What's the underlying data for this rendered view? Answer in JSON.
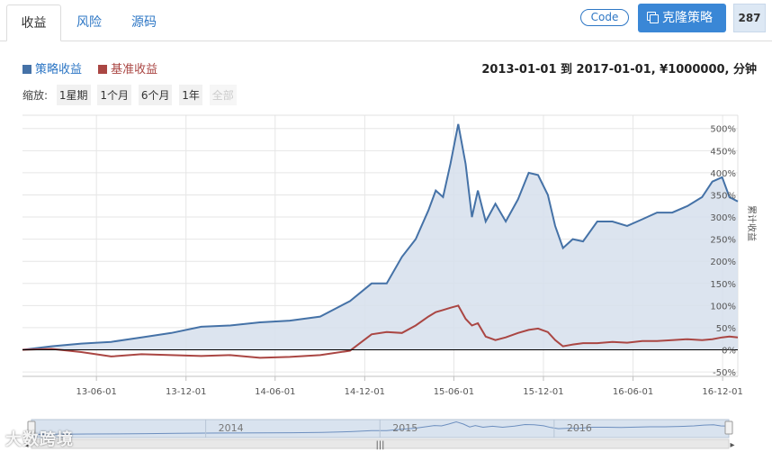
{
  "tabs": [
    {
      "label": "收益",
      "active": true
    },
    {
      "label": "风险",
      "active": false
    },
    {
      "label": "源码",
      "active": false
    }
  ],
  "header_buttons": {
    "code_label": "Code",
    "clone_label": "克隆策略",
    "clone_count": "287"
  },
  "range_text": "2013-01-01 到 2017-01-01, ¥1000000, 分钟",
  "zoom": {
    "label": "缩放:",
    "options": [
      "1星期",
      "1个月",
      "6个月",
      "1年",
      "全部"
    ]
  },
  "watermark": "大数跨境",
  "colors": {
    "strategy": "#4572a7",
    "benchmark": "#aa4643",
    "area": "#d6dfec",
    "accent": "#3a87d6"
  },
  "chart_data": {
    "type": "line",
    "ylabel": "累计收益",
    "ylim": [
      -60,
      530
    ],
    "yticks": [
      -50,
      0,
      50,
      100,
      150,
      200,
      250,
      300,
      350,
      400,
      450,
      500
    ],
    "ytick_labels": [
      "-50%",
      "0%",
      "50%",
      "100%",
      "150%",
      "200%",
      "250%",
      "300%",
      "350%",
      "400%",
      "450%",
      "500%"
    ],
    "xlim": [
      "2013-01-01",
      "2017-01-01"
    ],
    "xtick_labels": [
      "13-06-01",
      "13-12-01",
      "14-06-01",
      "14-12-01",
      "15-06-01",
      "15-12-01",
      "16-06-01",
      "16-12-01"
    ],
    "navigator_labels": [
      "2014",
      "2015",
      "2016"
    ],
    "grid": true,
    "legend_position": "top-left",
    "series": [
      {
        "name": "策略收益",
        "color": "#4572a7",
        "area": true,
        "x": [
          "2013-01-01",
          "2013-03-01",
          "2013-05-01",
          "2013-07-01",
          "2013-09-01",
          "2013-11-01",
          "2014-01-01",
          "2014-03-01",
          "2014-05-01",
          "2014-07-01",
          "2014-09-01",
          "2014-11-01",
          "2014-12-15",
          "2015-01-15",
          "2015-02-15",
          "2015-03-15",
          "2015-04-10",
          "2015-04-25",
          "2015-05-10",
          "2015-05-25",
          "2015-06-10",
          "2015-06-25",
          "2015-07-08",
          "2015-07-20",
          "2015-08-05",
          "2015-08-25",
          "2015-09-15",
          "2015-10-10",
          "2015-11-01",
          "2015-11-20",
          "2015-12-10",
          "2015-12-25",
          "2016-01-10",
          "2016-01-30",
          "2016-02-20",
          "2016-03-20",
          "2016-04-20",
          "2016-05-20",
          "2016-06-20",
          "2016-07-20",
          "2016-08-20",
          "2016-09-20",
          "2016-10-20",
          "2016-11-10",
          "2016-11-30",
          "2016-12-15",
          "2017-01-01"
        ],
        "values": [
          0,
          8,
          14,
          18,
          28,
          38,
          52,
          55,
          62,
          66,
          75,
          110,
          150,
          150,
          210,
          250,
          315,
          360,
          345,
          420,
          510,
          420,
          300,
          360,
          290,
          330,
          290,
          340,
          400,
          395,
          350,
          280,
          230,
          250,
          245,
          290,
          290,
          280,
          295,
          310,
          310,
          325,
          345,
          380,
          390,
          345,
          335
        ]
      },
      {
        "name": "基准收益",
        "color": "#aa4643",
        "area": false,
        "x": [
          "2013-01-01",
          "2013-03-01",
          "2013-05-01",
          "2013-07-01",
          "2013-09-01",
          "2013-11-01",
          "2014-01-01",
          "2014-03-01",
          "2014-05-01",
          "2014-07-01",
          "2014-09-01",
          "2014-11-01",
          "2014-12-15",
          "2015-01-15",
          "2015-02-15",
          "2015-03-15",
          "2015-04-10",
          "2015-04-25",
          "2015-05-10",
          "2015-05-25",
          "2015-06-10",
          "2015-06-25",
          "2015-07-08",
          "2015-07-20",
          "2015-08-05",
          "2015-08-25",
          "2015-09-15",
          "2015-10-10",
          "2015-11-01",
          "2015-11-20",
          "2015-12-10",
          "2015-12-25",
          "2016-01-10",
          "2016-01-30",
          "2016-02-20",
          "2016-03-20",
          "2016-04-20",
          "2016-05-20",
          "2016-06-20",
          "2016-07-20",
          "2016-08-20",
          "2016-09-20",
          "2016-10-20",
          "2016-11-10",
          "2016-11-30",
          "2016-12-15",
          "2017-01-01"
        ],
        "values": [
          0,
          2,
          -5,
          -15,
          -10,
          -12,
          -14,
          -12,
          -18,
          -16,
          -12,
          -2,
          35,
          40,
          38,
          55,
          75,
          85,
          90,
          95,
          100,
          70,
          55,
          60,
          30,
          22,
          28,
          38,
          45,
          48,
          40,
          22,
          8,
          12,
          15,
          15,
          18,
          16,
          20,
          20,
          22,
          24,
          22,
          24,
          28,
          30,
          28
        ]
      }
    ]
  }
}
